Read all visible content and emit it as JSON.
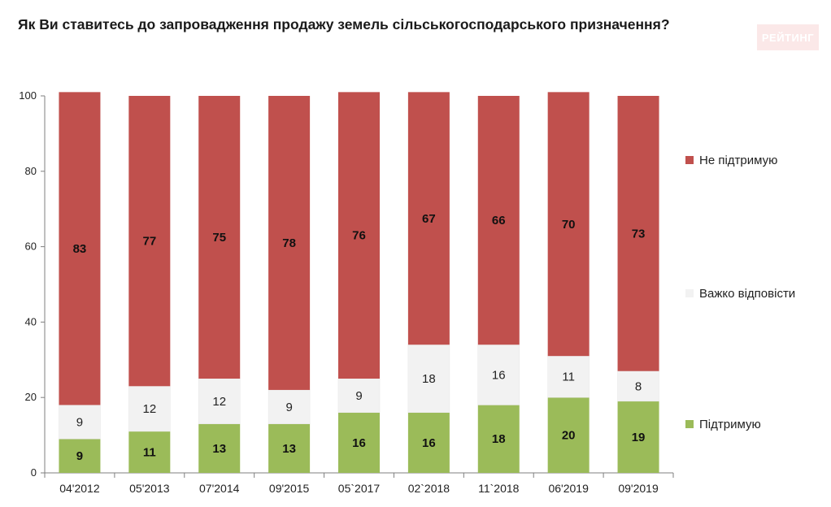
{
  "title": "Як Ви ставитесь до запровадження продажу земель сільськогосподарського призначення?",
  "logo_text": "РЕЙТИНГ",
  "chart_data": {
    "type": "bar",
    "stacked": true,
    "categories": [
      "04'2012",
      "05'2013",
      "07'2014",
      "09'2015",
      "05`2017",
      "02`2018",
      "11`2018",
      "06'2019",
      "09'2019"
    ],
    "series": [
      {
        "name": "Підтримую",
        "color": "#9bbb59",
        "values": [
          9,
          11,
          13,
          13,
          16,
          16,
          18,
          20,
          19
        ],
        "labels": [
          "9",
          "11",
          "13",
          "13",
          "16",
          "16",
          "18",
          "20",
          "19"
        ]
      },
      {
        "name": "Важко відповісти",
        "color": "#f2f2f2",
        "values": [
          9,
          12,
          12,
          9,
          9,
          18,
          16,
          11,
          8
        ],
        "labels": [
          "9",
          "12",
          "12",
          "9",
          "9",
          "18",
          "16",
          "11",
          "8"
        ]
      },
      {
        "name": "Не підтримую",
        "color": "#c0504d",
        "values": [
          83,
          77,
          75,
          78,
          76,
          67,
          66,
          70,
          73
        ],
        "labels": [
          "83",
          "77",
          "75",
          "78",
          "76",
          "67",
          "66",
          "70",
          "73"
        ]
      }
    ],
    "legend_order": [
      "Не підтримую",
      "Важко відповісти",
      "Підтримую"
    ],
    "ylim": [
      0,
      100
    ],
    "yticks": [
      "0",
      "20",
      "40",
      "60",
      "80",
      "100"
    ],
    "xlabel": "",
    "ylabel": "",
    "grid": false,
    "legend_position": "right"
  }
}
